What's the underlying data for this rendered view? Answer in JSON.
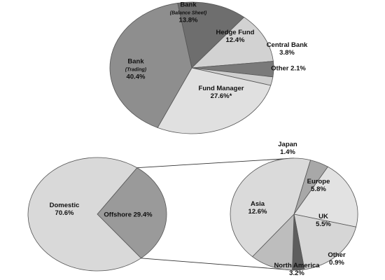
{
  "chart_data": [
    {
      "type": "pie",
      "slices": [
        {
          "label": "Bank",
          "sublabel": "(Balance Sheet)",
          "value": 13.8,
          "display": "13.8%",
          "color": "#6e6e6e"
        },
        {
          "label": "Hedge Fund",
          "value": 12.4,
          "display": "12.4%",
          "color": "#d2d2d2"
        },
        {
          "label": "Central Bank",
          "value": 3.8,
          "display": "3.8%",
          "color": "#7a7a7a"
        },
        {
          "label": "Other",
          "value": 2.1,
          "display": "2.1%",
          "color": "#cfcfcf",
          "inline": true
        },
        {
          "label": "Fund Manager",
          "value": 27.6,
          "display": "27.6%*",
          "color": "#e0e0e0"
        },
        {
          "label": "Bank",
          "sublabel": "(Trading)",
          "value": 40.4,
          "display": "40.4%",
          "color": "#8e8e8e"
        }
      ]
    },
    {
      "type": "pie",
      "slices": [
        {
          "label": "Offshore",
          "value": 29.4,
          "display": "29.4%",
          "color": "#9a9a9a",
          "inline": true
        },
        {
          "label": "Domestic",
          "value": 70.6,
          "display": "70.6%",
          "color": "#d9d9d9"
        }
      ]
    },
    {
      "type": "pie",
      "slices": [
        {
          "label": "Japan",
          "value": 1.4,
          "display": "1.4%",
          "color": "#a8a8a8"
        },
        {
          "label": "Europe",
          "value": 5.8,
          "display": "5.8%",
          "color": "#e2e2e2"
        },
        {
          "label": "UK",
          "value": 5.5,
          "display": "5.5%",
          "color": "#d6d6d6"
        },
        {
          "label": "Other",
          "value": 0.9,
          "display": "0.9%",
          "color": "#5e5e5e"
        },
        {
          "label": "North America",
          "value": 3.2,
          "display": "3.2%",
          "color": "#bdbdbd"
        },
        {
          "label": "Asia",
          "value": 12.6,
          "display": "12.6%",
          "color": "#dadada"
        }
      ]
    }
  ]
}
